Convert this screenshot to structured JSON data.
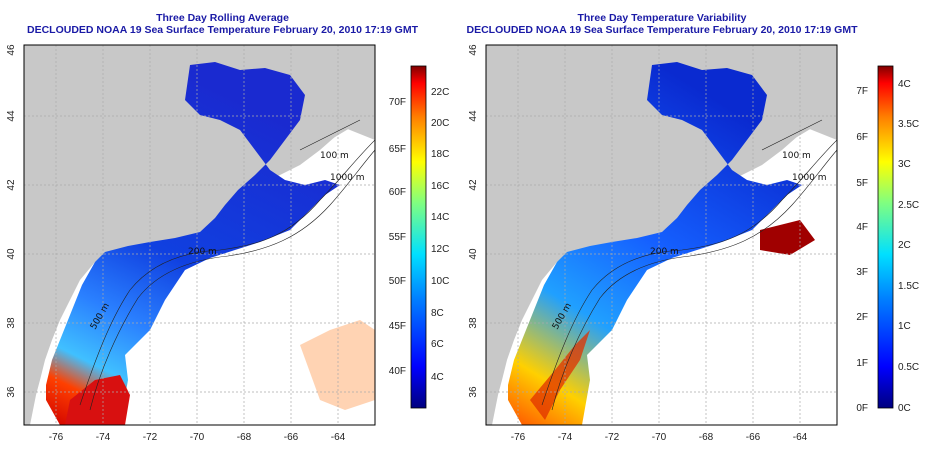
{
  "left_panel": {
    "title_line1": "Three Day Rolling Average",
    "title_line2": "DECLOUDED NOAA 19 Sea Surface Temperature February 20, 2010 17:19 GMT",
    "colorbar": {
      "celsius_labels": [
        "22C",
        "20C",
        "18C",
        "16C",
        "14C",
        "12C",
        "10C",
        "8C",
        "6C",
        "4C"
      ],
      "fahrenheit_labels": [
        "70F",
        "65F",
        "60F",
        "55F",
        "50F",
        "45F",
        "40F"
      ]
    }
  },
  "right_panel": {
    "title_line1": "Three Day Temperature Variability",
    "title_line2": "DECLOUDED NOAA 19 Sea Surface Temperature February 20, 2010 17:19 GMT",
    "colorbar": {
      "celsius_labels": [
        "4C",
        "3.5C",
        "3C",
        "2.5C",
        "2C",
        "1.5C",
        "1C",
        "0.5C",
        "0C"
      ],
      "fahrenheit_labels": [
        "7F",
        "6F",
        "5F",
        "4F",
        "3F",
        "2F",
        "1F",
        "0F"
      ]
    }
  },
  "map": {
    "lon_ticks": [
      "-76",
      "-74",
      "-72",
      "-70",
      "-68",
      "-66",
      "-64"
    ],
    "lat_ticks": [
      "36",
      "38",
      "40",
      "42",
      "44",
      "46"
    ],
    "contour_labels": [
      "100 m",
      "1000 m",
      "200 m",
      "500 m",
      "50 m"
    ],
    "colors": {
      "land": "#c8c8c8",
      "no_data": "#ffffff",
      "title": "#1a1aa6"
    }
  }
}
